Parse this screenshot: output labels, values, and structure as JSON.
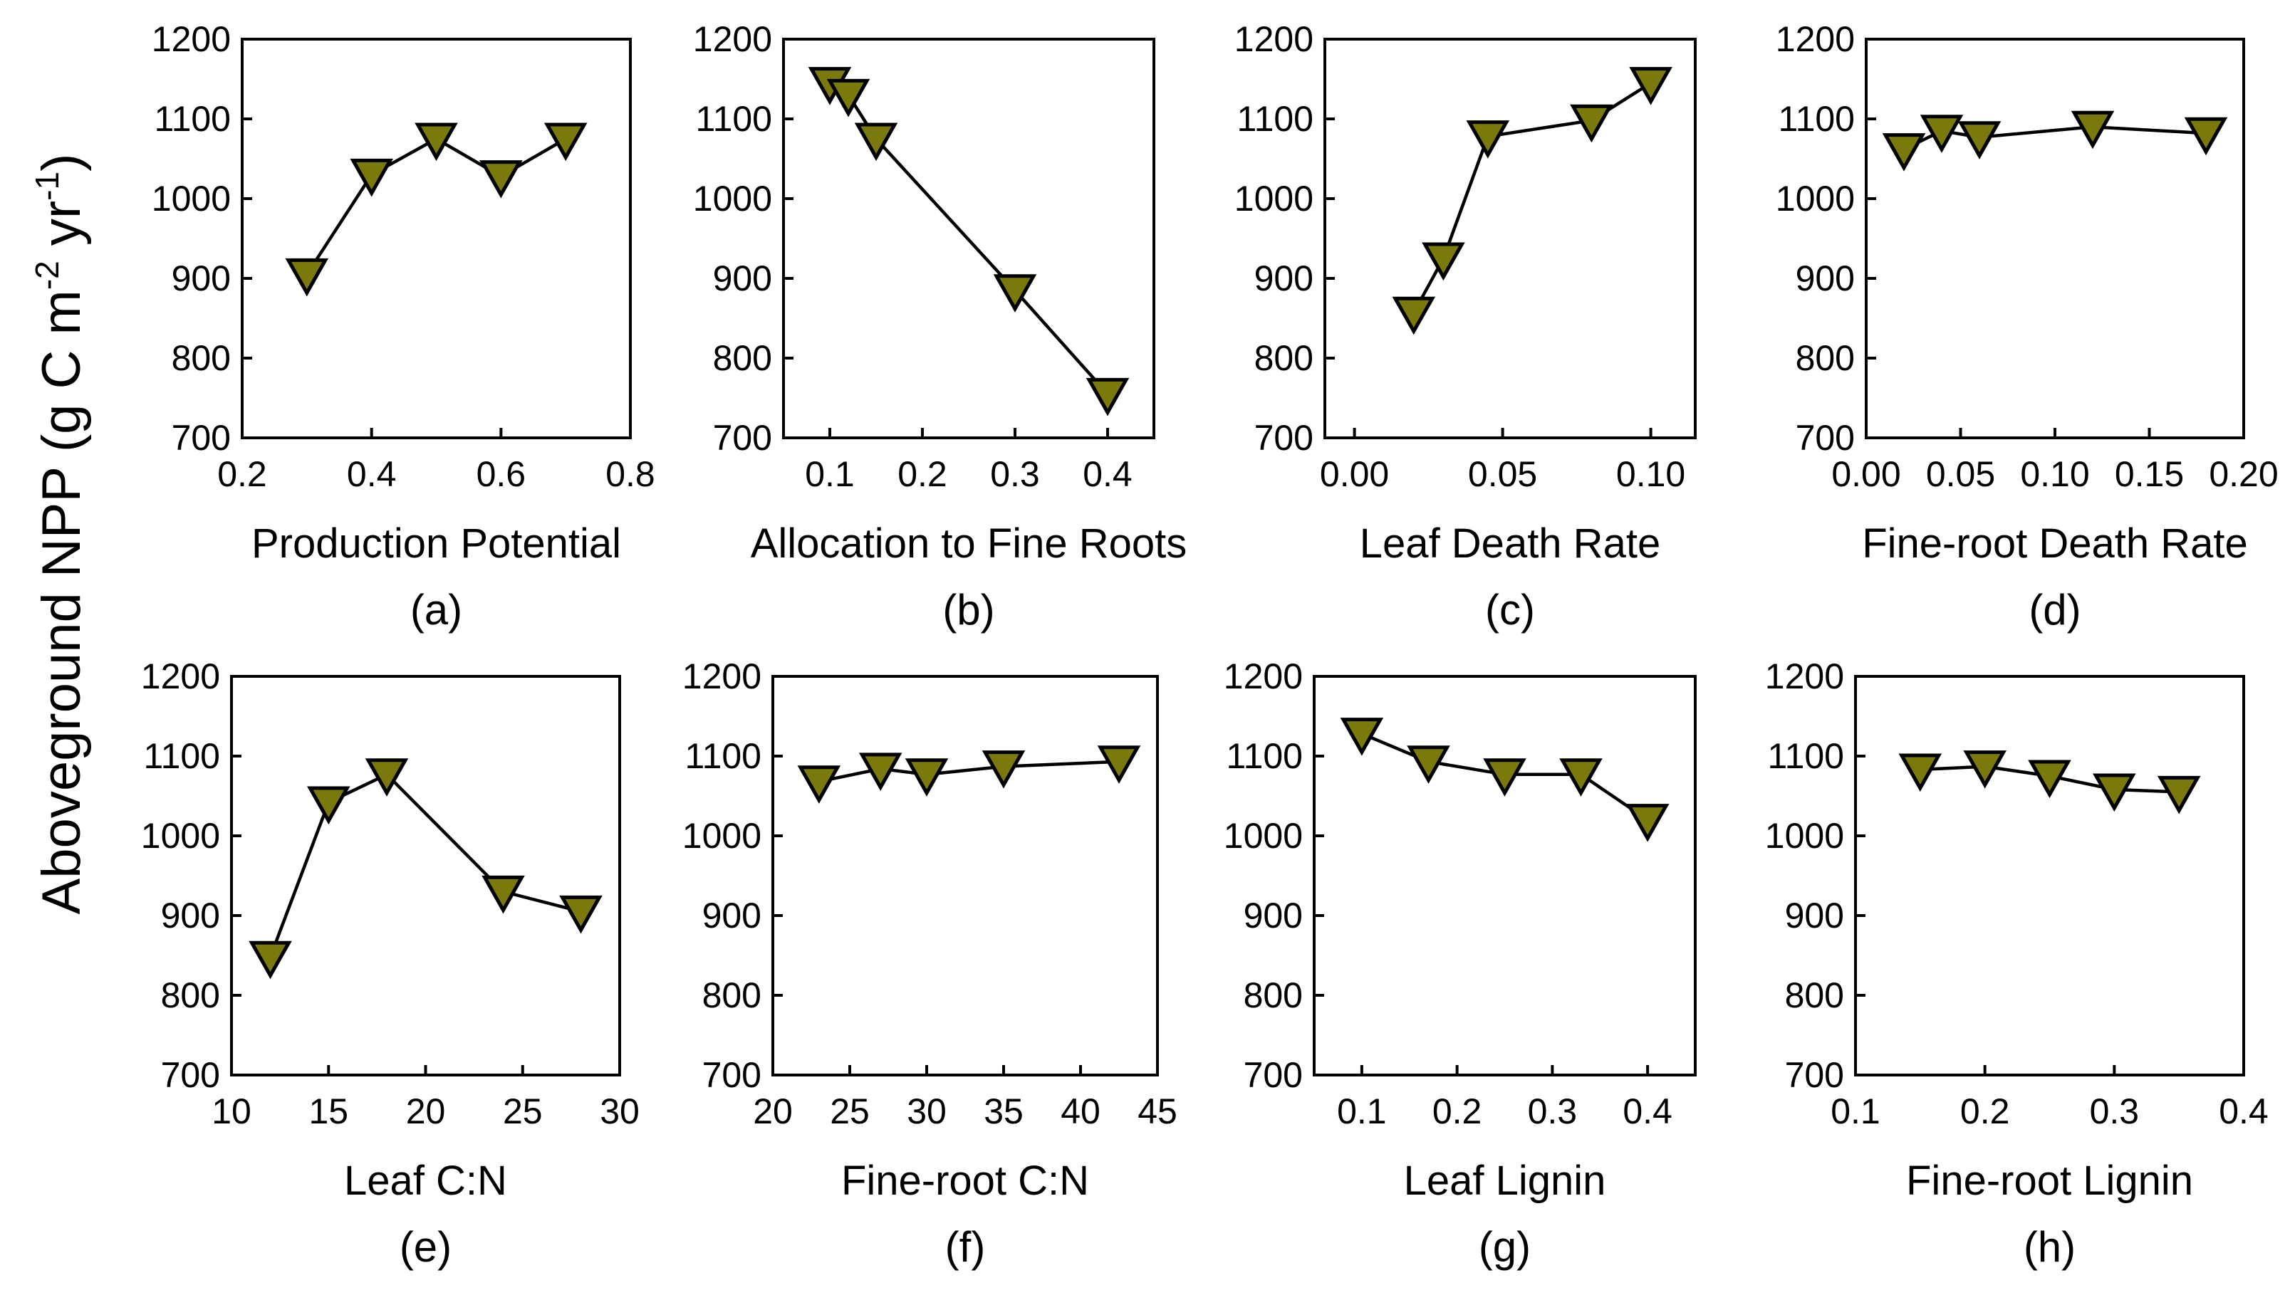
{
  "figure": {
    "ylabel": {
      "main": "Aboveground NPP (g C m",
      "exp1": "-2",
      "mid": " yr",
      "exp2": "-1",
      "end": ")"
    },
    "marker_color": "#7a7a0c",
    "line_color": "#000000"
  },
  "chart_data": [
    {
      "type": "line",
      "panel": "(a)",
      "xlabel": "Production Potential",
      "ylabel": "Aboveground NPP (g C m-2 yr-1)",
      "xlim": [
        0.2,
        0.8
      ],
      "xticks": [
        "0.2",
        "0.4",
        "0.6",
        "0.8"
      ],
      "ylim": [
        700,
        1200
      ],
      "yticks": [
        "700",
        "800",
        "900",
        "1000",
        "1100",
        "1200"
      ],
      "x": [
        0.3,
        0.4,
        0.5,
        0.6,
        0.7
      ],
      "y": [
        905,
        1030,
        1075,
        1028,
        1075
      ]
    },
    {
      "type": "line",
      "panel": "(b)",
      "xlabel": "Allocation to Fine Roots",
      "ylabel": "Aboveground NPP (g C m-2 yr-1)",
      "xlim": [
        0.05,
        0.45
      ],
      "xticks": [
        "0.1",
        "0.2",
        "0.3",
        "0.4"
      ],
      "ylim": [
        700,
        1200
      ],
      "yticks": [
        "700",
        "800",
        "900",
        "1000",
        "1100",
        "1200"
      ],
      "x": [
        0.1,
        0.12,
        0.15,
        0.3,
        0.4
      ],
      "y": [
        1145,
        1130,
        1075,
        885,
        755
      ]
    },
    {
      "type": "line",
      "panel": "(c)",
      "xlabel": "Leaf Death Rate",
      "ylabel": "Aboveground NPP (g C m-2 yr-1)",
      "xlim": [
        -0.01,
        0.115
      ],
      "xticks": [
        "0.00",
        "0.05",
        "0.10"
      ],
      "ylim": [
        700,
        1200
      ],
      "yticks": [
        "700",
        "800",
        "900",
        "1000",
        "1100",
        "1200"
      ],
      "x": [
        0.02,
        0.03,
        0.045,
        0.08,
        0.1
      ],
      "y": [
        857,
        925,
        1078,
        1098,
        1145
      ]
    },
    {
      "type": "line",
      "panel": "(d)",
      "xlabel": "Fine-root Death Rate",
      "ylabel": "Aboveground NPP (g C m-2 yr-1)",
      "xlim": [
        0.0,
        0.2
      ],
      "xticks": [
        "0.00",
        "0.05",
        "0.10",
        "0.15",
        "0.20"
      ],
      "ylim": [
        700,
        1200
      ],
      "yticks": [
        "700",
        "800",
        "900",
        "1000",
        "1100",
        "1200"
      ],
      "x": [
        0.02,
        0.04,
        0.06,
        0.12,
        0.18
      ],
      "y": [
        1062,
        1085,
        1077,
        1090,
        1082
      ]
    },
    {
      "type": "line",
      "panel": "(e)",
      "xlabel": "Leaf C:N",
      "ylabel": "Aboveground NPP (g C m-2 yr-1)",
      "xlim": [
        10,
        30
      ],
      "xticks": [
        "10",
        "15",
        "20",
        "25",
        "30"
      ],
      "ylim": [
        700,
        1200
      ],
      "yticks": [
        "700",
        "800",
        "900",
        "1000",
        "1100",
        "1200"
      ],
      "x": [
        12,
        15,
        18,
        24,
        28
      ],
      "y": [
        848,
        1042,
        1077,
        930,
        905
      ]
    },
    {
      "type": "line",
      "panel": "(f)",
      "xlabel": "Fine-root C:N",
      "ylabel": "Aboveground NPP (g C m-2 yr-1)",
      "xlim": [
        20,
        45
      ],
      "xticks": [
        "20",
        "25",
        "30",
        "35",
        "40",
        "45"
      ],
      "ylim": [
        700,
        1200
      ],
      "yticks": [
        "700",
        "800",
        "900",
        "1000",
        "1100",
        "1200"
      ],
      "x": [
        23,
        27,
        30,
        35,
        42.5
      ],
      "y": [
        1068,
        1084,
        1077,
        1087,
        1093
      ]
    },
    {
      "type": "line",
      "panel": "(g)",
      "xlabel": "Leaf Lignin",
      "ylabel": "Aboveground NPP (g C m-2 yr-1)",
      "xlim": [
        0.05,
        0.45
      ],
      "xticks": [
        "0.1",
        "0.2",
        "0.3",
        "0.4"
      ],
      "ylim": [
        700,
        1200
      ],
      "yticks": [
        "700",
        "800",
        "900",
        "1000",
        "1100",
        "1200"
      ],
      "x": [
        0.1,
        0.17,
        0.25,
        0.33,
        0.4
      ],
      "y": [
        1128,
        1093,
        1077,
        1077,
        1020
      ]
    },
    {
      "type": "line",
      "panel": "(h)",
      "xlabel": "Fine-root Lignin",
      "ylabel": "Aboveground NPP (g C m-2 yr-1)",
      "xlim": [
        0.1,
        0.4
      ],
      "xticks": [
        "0.1",
        "0.2",
        "0.3",
        "0.4"
      ],
      "ylim": [
        700,
        1200
      ],
      "yticks": [
        "700",
        "800",
        "900",
        "1000",
        "1100",
        "1200"
      ],
      "x": [
        0.15,
        0.2,
        0.25,
        0.3,
        0.35
      ],
      "y": [
        1083,
        1087,
        1075,
        1058,
        1055
      ]
    }
  ]
}
